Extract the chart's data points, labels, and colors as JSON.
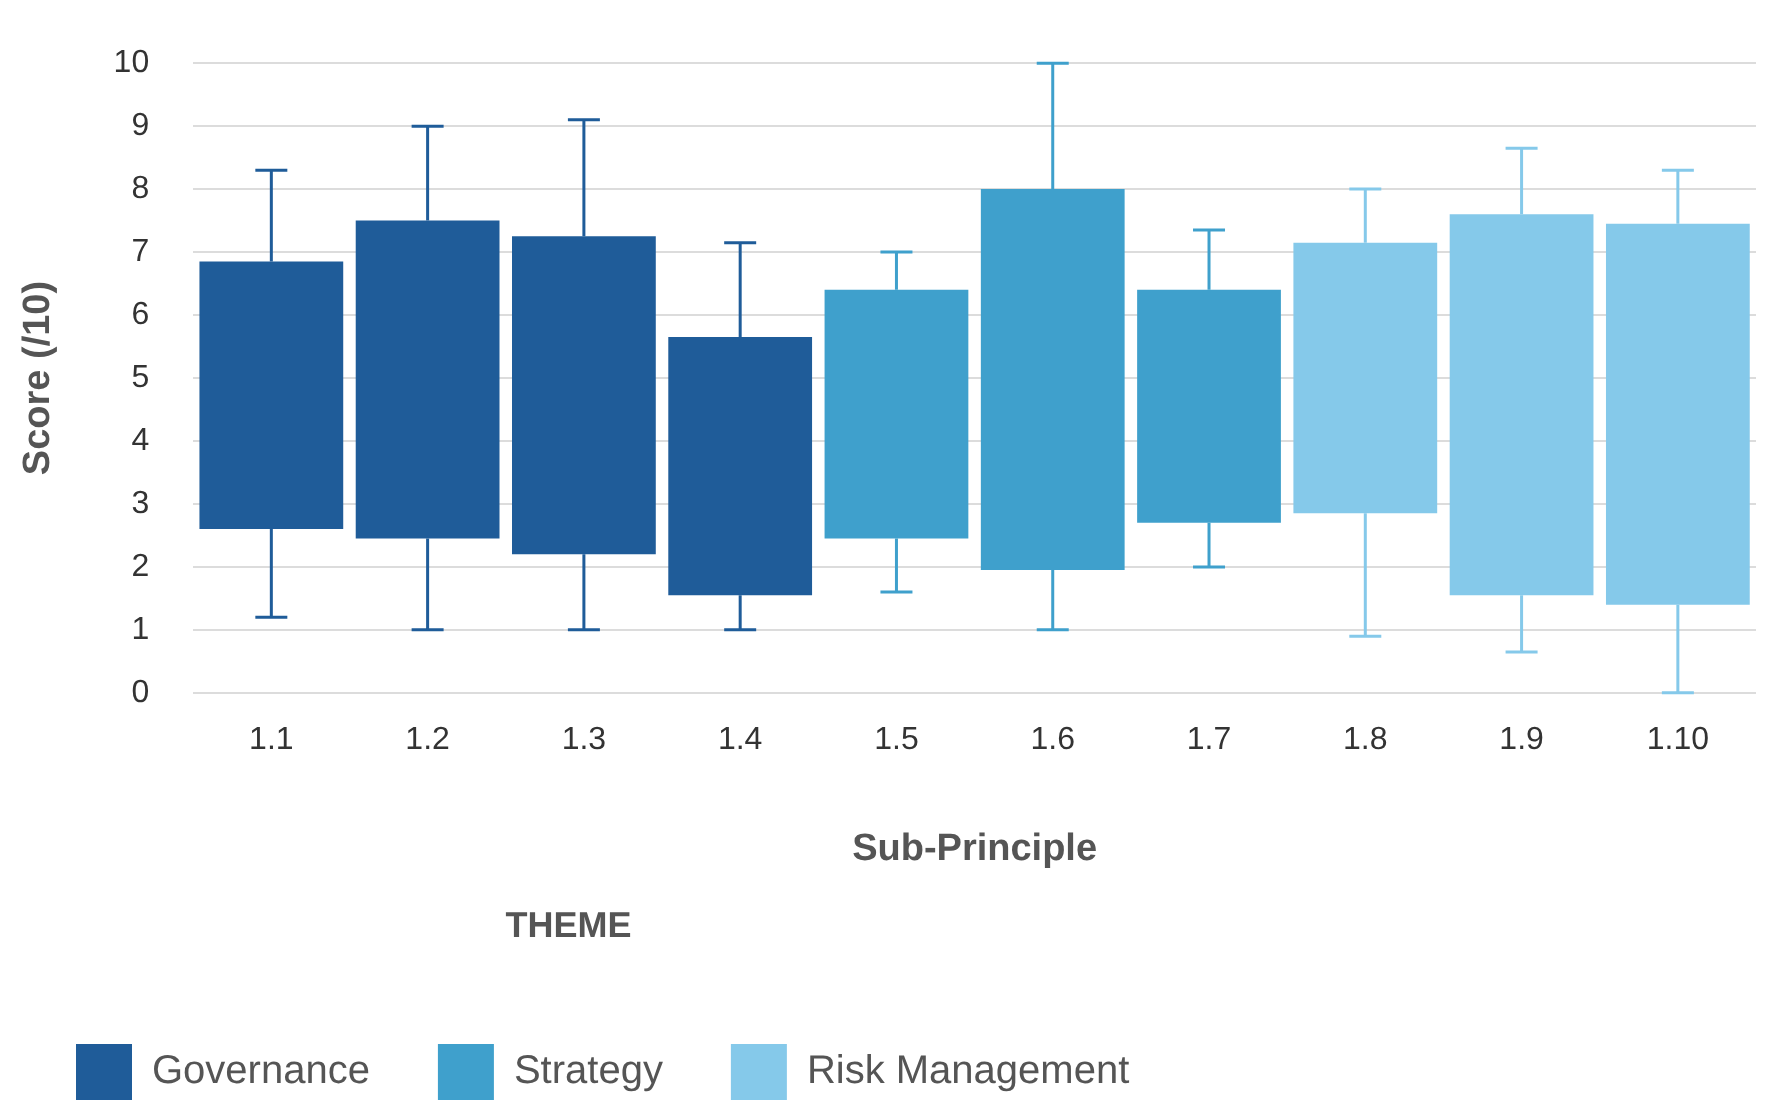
{
  "chart_data": {
    "type": "box",
    "xlabel": "Sub-Principle",
    "ylabel": "Score (/10)",
    "legend_title": "THEME",
    "categories": [
      "1.1",
      "1.2",
      "1.3",
      "1.4",
      "1.5",
      "1.6",
      "1.7",
      "1.8",
      "1.9",
      "1.10"
    ],
    "ylim": [
      0,
      10
    ],
    "yticks": [
      0,
      1,
      2,
      3,
      4,
      5,
      6,
      7,
      8,
      9,
      10
    ],
    "grid": "y",
    "legend": "bottom left",
    "series": [
      {
        "name": "Governance",
        "color": "#1f5c99",
        "boxes": [
          {
            "low": 1.2,
            "q1": 2.6,
            "q3": 6.85,
            "high": 8.3
          },
          {
            "low": 1,
            "q1": 2.45,
            "q3": 7.5,
            "high": 9
          },
          {
            "low": 1,
            "q1": 2.2,
            "q3": 7.25,
            "high": 9.1
          },
          {
            "low": 1,
            "q1": 1.55,
            "q3": 5.65,
            "high": 7.15
          },
          null,
          null,
          null,
          null,
          null,
          null
        ]
      },
      {
        "name": "Strategy",
        "color": "#3fa0cc",
        "boxes": [
          null,
          null,
          null,
          null,
          {
            "low": 1.6,
            "q1": 2.45,
            "q3": 6.4,
            "high": 7
          },
          {
            "low": 1,
            "q1": 1.95,
            "q3": 8,
            "high": 10
          },
          {
            "low": 2,
            "q1": 2.7,
            "q3": 6.4,
            "high": 7.35
          },
          null,
          null,
          null
        ]
      },
      {
        "name": "Risk Management",
        "color": "#85c9ea",
        "boxes": [
          null,
          null,
          null,
          null,
          null,
          null,
          null,
          {
            "low": 0.9,
            "q1": 2.85,
            "q3": 7.15,
            "high": 8
          },
          {
            "low": 0.65,
            "q1": 1.55,
            "q3": 7.6,
            "high": 8.65
          },
          {
            "low": 0,
            "q1": 1.4,
            "q3": 7.45,
            "high": 8.3
          }
        ]
      }
    ]
  }
}
